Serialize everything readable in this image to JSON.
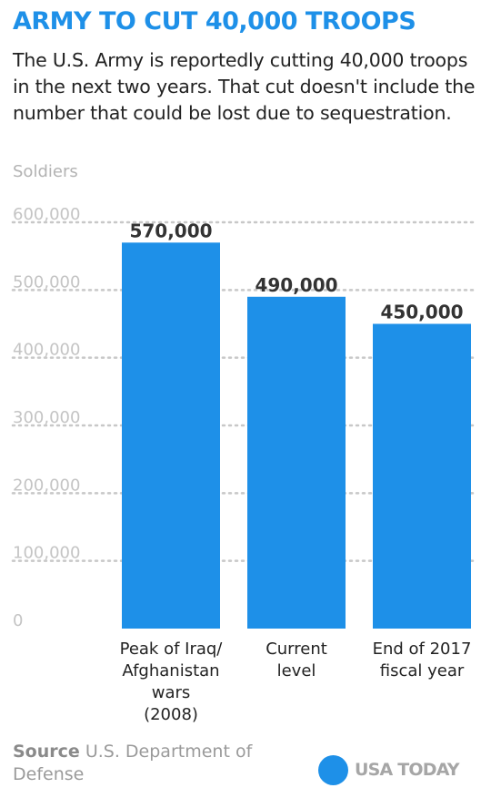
{
  "header": {
    "title": "ARMY TO CUT 40,000 TROOPS",
    "subtitle": "The U.S. Army is reportedly cutting 40,000 troops in the next two years. That cut doesn't include the number that could be lost due to sequestration."
  },
  "chart_data": {
    "type": "bar",
    "ylabel": "Soldiers",
    "ylim": [
      0,
      600000
    ],
    "yticks": [
      0,
      100000,
      200000,
      300000,
      400000,
      500000,
      600000
    ],
    "ytick_labels": [
      "0",
      "100,000",
      "200,000",
      "300,000",
      "400,000",
      "500,000",
      "600,000"
    ],
    "grid": true,
    "categories": [
      [
        "Peak of Iraq/",
        "Afghanistan",
        "wars",
        "(2008)"
      ],
      [
        "Current",
        "level"
      ],
      [
        "End of 2017",
        "fiscal year"
      ]
    ],
    "values": [
      570000,
      490000,
      450000
    ],
    "value_labels": [
      "570,000",
      "490,000",
      "450,000"
    ],
    "colors": {
      "bar": "#1e90e8",
      "grid": "#c8c8c8",
      "tick": "#c4c4c4",
      "value_label": "#333333"
    }
  },
  "footer": {
    "source_keyword": "Source",
    "source_text": "U.S. Department of Defense",
    "brand": "USA TODAY",
    "brand_color": "#1e90e8"
  }
}
